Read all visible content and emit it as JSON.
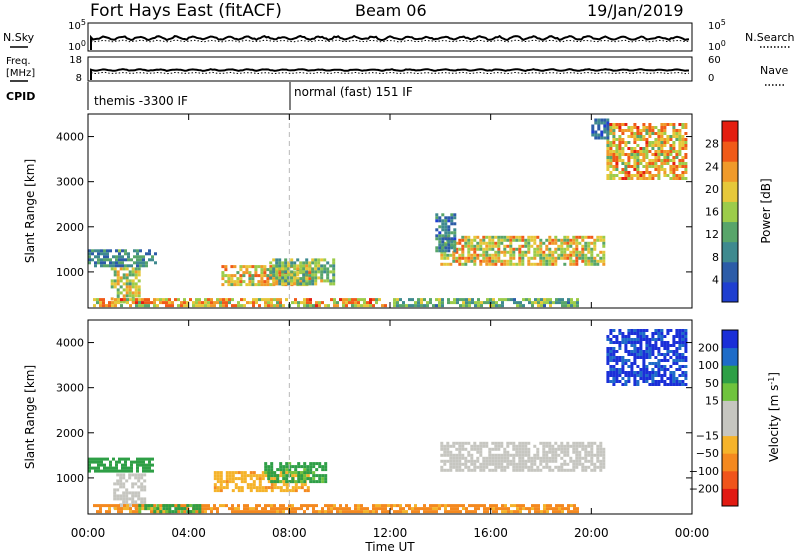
{
  "header": {
    "station": "Fort Hays East (fitACF)",
    "beam": "Beam 06",
    "date": "19/Jan/2019"
  },
  "noise_panel": {
    "left_label": "N.Sky",
    "right_label": "N.Search",
    "left_ticks": [
      "10^5",
      "10^0"
    ],
    "right_ticks": [
      "10^5",
      "10^0"
    ]
  },
  "freq_panel": {
    "left_label_line1": "Freq.",
    "left_label_line2": "[MHz]",
    "right_label": "Nave",
    "left_ticks": [
      "18",
      "8"
    ],
    "right_ticks": [
      "60",
      "0"
    ]
  },
  "cpid": {
    "label": "CPID",
    "mode1": "themis -3300 IF",
    "mode2": "normal (fast) 151 IF"
  },
  "colors": {
    "power_scale": [
      "#1f3fd0",
      "#2c5ca8",
      "#3f8a8f",
      "#58a56a",
      "#9ccc4a",
      "#e6c83a",
      "#f09a2a",
      "#f05a18",
      "#e41e10"
    ],
    "velocity_scale": [
      "#e11a12",
      "#f0541a",
      "#f4891f",
      "#f5b32a",
      "#c6c6c0",
      "#c6c6c0",
      "#6fc33d",
      "#2e9f46",
      "#1e6cc8",
      "#1a2fd8"
    ]
  },
  "chart_data": [
    {
      "type": "heatmap",
      "title": "",
      "ylabel": "Slant Range [km]",
      "xlabel": "",
      "x_tick_labels": [
        "00:00",
        "04:00",
        "08:00",
        "12:00",
        "16:00",
        "20:00",
        "00:00"
      ],
      "xlim_hours": [
        0,
        24
      ],
      "ylim": [
        200,
        4500
      ],
      "y_ticks": [
        1000,
        2000,
        3000,
        4000
      ],
      "colorbar": {
        "label": "Power [dB]",
        "tick_labels": [
          "4",
          "8",
          "12",
          "16",
          "20",
          "24",
          "28"
        ],
        "range": [
          0,
          32
        ]
      },
      "regions": [
        {
          "t0": 0.0,
          "t1": 2.7,
          "r0": 1150,
          "r1": 1500,
          "value": 9
        },
        {
          "t0": 0.9,
          "t1": 2.0,
          "r0": 350,
          "r1": 1100,
          "value": 17
        },
        {
          "t0": 0.2,
          "t1": 12.0,
          "r0": 250,
          "r1": 420,
          "value": 21
        },
        {
          "t0": 5.3,
          "t1": 8.8,
          "r0": 700,
          "r1": 1150,
          "value": 20
        },
        {
          "t0": 7.2,
          "t1": 9.8,
          "r0": 750,
          "r1": 1300,
          "value": 15
        },
        {
          "t0": 12.0,
          "t1": 19.5,
          "r0": 250,
          "r1": 420,
          "value": 13
        },
        {
          "t0": 14.0,
          "t1": 20.5,
          "r0": 1200,
          "r1": 1800,
          "value": 19
        },
        {
          "t0": 13.8,
          "t1": 14.6,
          "r0": 1500,
          "r1": 2300,
          "value": 8
        },
        {
          "t0": 20.6,
          "t1": 23.8,
          "r0": 3100,
          "r1": 4300,
          "value": 21
        },
        {
          "t0": 20.0,
          "t1": 20.7,
          "r0": 4000,
          "r1": 4400,
          "value": 6
        }
      ],
      "vertical_marker_hour": 8
    },
    {
      "type": "heatmap",
      "title": "",
      "ylabel": "Slant Range [km]",
      "xlabel": "Time UT",
      "x_tick_labels": [
        "00:00",
        "04:00",
        "08:00",
        "12:00",
        "16:00",
        "20:00",
        "00:00"
      ],
      "xlim_hours": [
        0,
        24
      ],
      "ylim": [
        200,
        4500
      ],
      "y_ticks": [
        1000,
        2000,
        3000,
        4000
      ],
      "colorbar": {
        "label": "Velocity [m s^-1]",
        "tick_labels": [
          "200",
          "100",
          "50",
          "15",
          "−15",
          "−50",
          "−100",
          "−200"
        ],
        "range": [
          -250,
          250
        ]
      },
      "regions": [
        {
          "t0": 0.0,
          "t1": 2.6,
          "r0": 1150,
          "r1": 1450,
          "value": 70
        },
        {
          "t0": 1.0,
          "t1": 2.2,
          "r0": 350,
          "r1": 1100,
          "value": 0
        },
        {
          "t0": 0.2,
          "t1": 19.5,
          "r0": 250,
          "r1": 420,
          "value": -60
        },
        {
          "t0": 5.0,
          "t1": 8.7,
          "r0": 750,
          "r1": 1150,
          "value": -40
        },
        {
          "t0": 7.0,
          "t1": 9.5,
          "r0": 950,
          "r1": 1350,
          "value": 60
        },
        {
          "t0": 14.0,
          "t1": 20.5,
          "r0": 1200,
          "r1": 1800,
          "value": 0
        },
        {
          "t0": 20.6,
          "t1": 23.8,
          "r0": 3100,
          "r1": 4300,
          "value": 220
        },
        {
          "t0": 2.0,
          "t1": 4.5,
          "r0": 250,
          "r1": 420,
          "value": 60
        }
      ],
      "vertical_marker_hour": 8
    }
  ]
}
